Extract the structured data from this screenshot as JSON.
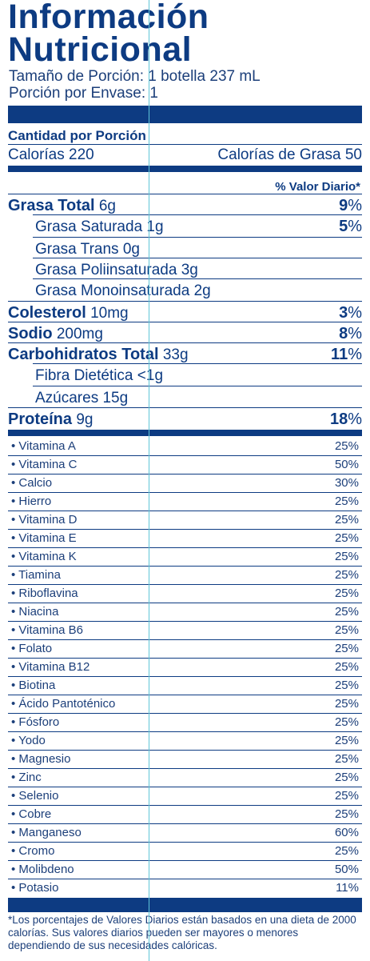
{
  "title": {
    "line1": "Información",
    "line2": "Nutricional"
  },
  "serving": {
    "size": "Tamaño de Porción: 1 botella 237 mL",
    "per_container": "Porción por Envase: 1"
  },
  "amount_header": "Cantidad por Porción",
  "calories": "Calorías 220",
  "calories_fat": "Calorías de Grasa 50",
  "dv_header": "% Valor Diario*",
  "nutrients": [
    {
      "name": "Grasa Total",
      "amount": "6g",
      "dv": "9",
      "bold": true
    },
    {
      "name": "Grasa Saturada",
      "amount": "1g",
      "dv": "5",
      "bold": false
    },
    {
      "name": "Grasa Trans",
      "amount": "0g",
      "dv": "",
      "bold": false
    },
    {
      "name": "Grasa Poliinsaturada",
      "amount": "3g",
      "dv": "",
      "bold": false
    },
    {
      "name": "Grasa Monoinsaturada",
      "amount": "2g",
      "dv": "",
      "bold": false
    },
    {
      "name": "Colesterol",
      "amount": "10mg",
      "dv": "3",
      "bold": true
    },
    {
      "name": "Sodio",
      "amount": "200mg",
      "dv": "8",
      "bold": true
    },
    {
      "name": "Carbohidratos Total",
      "amount": "33g",
      "dv": "11",
      "bold": true
    },
    {
      "name": "Fibra Dietética",
      "amount": "<1g",
      "dv": "",
      "bold": false
    },
    {
      "name": "Azúcares",
      "amount": "15g",
      "dv": "",
      "bold": false
    },
    {
      "name": "Proteína",
      "amount": "9g",
      "dv": "18",
      "bold": true
    }
  ],
  "percent_symbol": "%",
  "vitamins": [
    {
      "name": "• Vitamina A",
      "value": "25%"
    },
    {
      "name": "• Vitamina C",
      "value": "50%"
    },
    {
      "name": "• Calcio",
      "value": "30%"
    },
    {
      "name": "• Hierro",
      "value": "25%"
    },
    {
      "name": "• Vitamina D",
      "value": "25%"
    },
    {
      "name": "• Vitamina E",
      "value": "25%"
    },
    {
      "name": "• Vitamina K",
      "value": "25%"
    },
    {
      "name": "• Tiamina",
      "value": "25%"
    },
    {
      "name": "• Riboflavina",
      "value": "25%"
    },
    {
      "name": "• Niacina",
      "value": "25%"
    },
    {
      "name": "• Vitamina B6",
      "value": "25%"
    },
    {
      "name": "• Folato",
      "value": "25%"
    },
    {
      "name": "• Vitamina B12",
      "value": "25%"
    },
    {
      "name": "• Biotina",
      "value": "25%"
    },
    {
      "name": "• Ácido Pantoténico",
      "value": "25%"
    },
    {
      "name": "• Fósforo",
      "value": "25%"
    },
    {
      "name": "• Yodo",
      "value": "25%"
    },
    {
      "name": "• Magnesio",
      "value": "25%"
    },
    {
      "name": "• Zinc",
      "value": "25%"
    },
    {
      "name": "• Selenio",
      "value": "25%"
    },
    {
      "name": "• Cobre",
      "value": "25%"
    },
    {
      "name": "• Manganeso",
      "value": "60%"
    },
    {
      "name": "• Cromo",
      "value": "25%"
    },
    {
      "name": "• Molibdeno",
      "value": "50%"
    },
    {
      "name": "• Potasio",
      "value": "11%"
    }
  ],
  "footnote": "*Los porcentajes de Valores Diarios están basados en una dieta de 2000 calorías.  Sus valores diarios pueden ser mayores o menores dependiendo de sus necesidades calóricas.",
  "colors": {
    "label_blue": "#0d3b82",
    "guide_cyan": "#5fc6d8"
  }
}
